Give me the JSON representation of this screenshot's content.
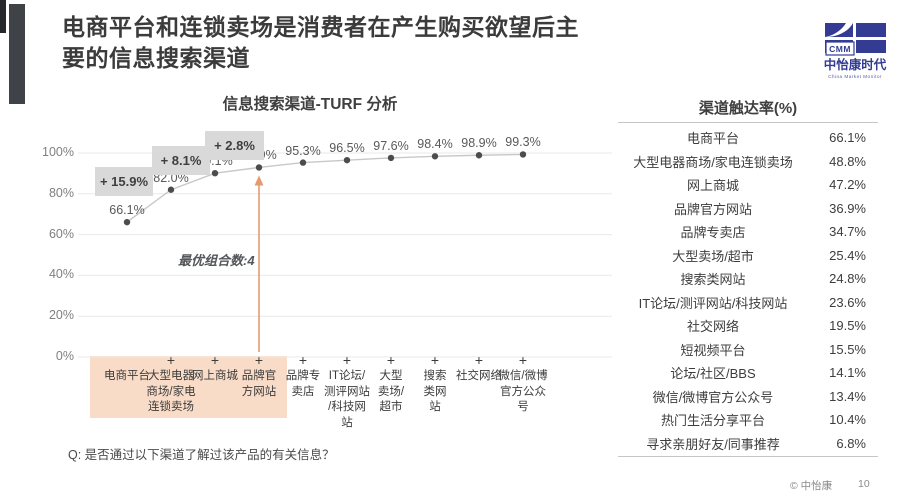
{
  "slide": {
    "title": "电商平台和连锁卖场是消费者在产生购买欲望后主\n要的信息搜索渠道",
    "footer_copyright": "© 中怡康",
    "page_number": "10"
  },
  "logo": {
    "acronym": "CMM",
    "name": "中怡康时代",
    "subtitle": "China Market Monitor"
  },
  "chart": {
    "title": "信息搜索渠道-TURF 分析",
    "annotation": "最优组合数:4",
    "question": "Q: 是否通过以下渠道了解过该产品的有关信息？"
  },
  "chart_data": {
    "type": "line",
    "title": "信息搜索渠道-TURF 分析",
    "categories": [
      "电商平台",
      "大型电器商场/家电连锁卖场",
      "网上商城",
      "品牌官方网站",
      "品牌专卖店",
      "IT论坛/测评网站/科技网站",
      "大型卖场/超市",
      "搜索类网站",
      "社交网络",
      "微信/微博官方公众号"
    ],
    "category_display": [
      "电商平台",
      "大型电器\n商场/家电\n连锁卖场",
      "网上商城",
      "品牌官\n方网站",
      "品牌专\n卖店",
      "IT论坛/\n测评网站\n/科技网\n站",
      "大型\n卖场/\n超市",
      "搜索\n类网\n站",
      "社交网络",
      "微信/微博\n官方公众\n号"
    ],
    "values": [
      66.1,
      82.0,
      90.1,
      92.9,
      95.3,
      96.5,
      97.6,
      98.4,
      98.9,
      99.3
    ],
    "value_labels": [
      "66.1%",
      "82.0%",
      "90.1%",
      "92.9%",
      "95.3%",
      "96.5%",
      "97.6%",
      "98.4%",
      "98.9%",
      "99.3%"
    ],
    "increment_labels": [
      "+ 15.9%",
      "+ 8.1%",
      "+ 2.8%"
    ],
    "plus_sign": "+",
    "optimal_combo_size": 4,
    "highlighted_categories": 4,
    "ylim": [
      0,
      100
    ],
    "yticks": [
      "100%",
      "80%",
      "60%",
      "40%",
      "20%",
      "0%"
    ],
    "ytick_values": [
      100,
      80,
      60,
      40,
      20,
      0
    ],
    "grid": true,
    "legend": "none"
  },
  "panel": {
    "title": "渠道触达率(%)",
    "rows": [
      {
        "label": "电商平台",
        "value": "66.1%"
      },
      {
        "label": "大型电器商场/家电连锁卖场",
        "value": "48.8%"
      },
      {
        "label": "网上商城",
        "value": "47.2%"
      },
      {
        "label": "品牌官方网站",
        "value": "36.9%"
      },
      {
        "label": "品牌专卖店",
        "value": "34.7%"
      },
      {
        "label": "大型卖场/超市",
        "value": "25.4%"
      },
      {
        "label": "搜索类网站",
        "value": "24.8%"
      },
      {
        "label": "IT论坛/测评网站/科技网站",
        "value": "23.6%"
      },
      {
        "label": "社交网络",
        "value": "19.5%"
      },
      {
        "label": "短视频平台",
        "value": "15.5%"
      },
      {
        "label": "论坛/社区/BBS",
        "value": "14.1%"
      },
      {
        "label": "微信/微博官方公众号",
        "value": "13.4%"
      },
      {
        "label": "热门生活分享平台",
        "value": "10.4%"
      },
      {
        "label": "寻求亲朋好友/同事推荐",
        "value": "6.8%"
      }
    ]
  },
  "colors": {
    "accent_orange": "#e49b6f",
    "highlight_peach": "#f9dcc7",
    "increment_box": "#d9d9d9",
    "logo_blue": "#333c92",
    "line_gray": "#c8c8c8",
    "marker_gray": "#4c4c4c",
    "grid_gray": "#eaeaea"
  }
}
